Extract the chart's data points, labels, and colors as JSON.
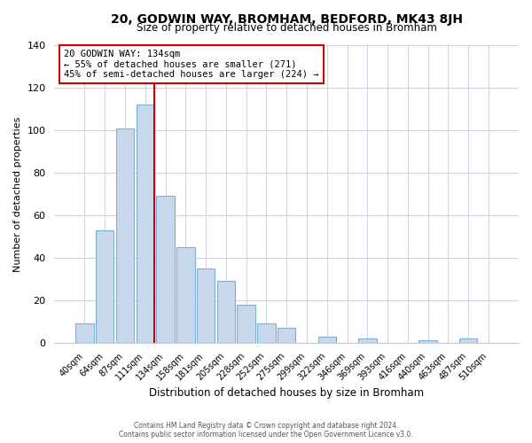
{
  "title": "20, GODWIN WAY, BROMHAM, BEDFORD, MK43 8JH",
  "subtitle": "Size of property relative to detached houses in Bromham",
  "xlabel": "Distribution of detached houses by size in Bromham",
  "ylabel": "Number of detached properties",
  "bar_labels": [
    "40sqm",
    "64sqm",
    "87sqm",
    "111sqm",
    "134sqm",
    "158sqm",
    "181sqm",
    "205sqm",
    "228sqm",
    "252sqm",
    "275sqm",
    "299sqm",
    "322sqm",
    "346sqm",
    "369sqm",
    "393sqm",
    "416sqm",
    "440sqm",
    "463sqm",
    "487sqm",
    "510sqm"
  ],
  "bar_heights": [
    9,
    53,
    101,
    112,
    69,
    45,
    35,
    29,
    18,
    9,
    7,
    0,
    3,
    0,
    2,
    0,
    0,
    1,
    0,
    2,
    0
  ],
  "bar_color": "#c8d8ec",
  "bar_edge_color": "#7bafd4",
  "vline_index": 3,
  "vline_color": "#cc0000",
  "annotation_title": "20 GODWIN WAY: 134sqm",
  "annotation_line1": "← 55% of detached houses are smaller (271)",
  "annotation_line2": "45% of semi-detached houses are larger (224) →",
  "annotation_box_edgecolor": "#cc0000",
  "ylim": [
    0,
    140
  ],
  "yticks": [
    0,
    20,
    40,
    60,
    80,
    100,
    120,
    140
  ],
  "footer1": "Contains HM Land Registry data © Crown copyright and database right 2024.",
  "footer2": "Contains public sector information licensed under the Open Government Licence v3.0."
}
